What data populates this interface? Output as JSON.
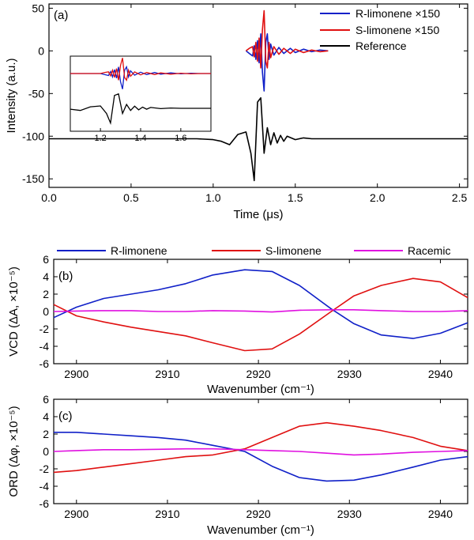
{
  "colors": {
    "R": "#1020c8",
    "S": "#e01010",
    "ref": "#000000",
    "rac": "#e010e0"
  },
  "chart_data": [
    {
      "type": "line",
      "panel_label": "(a)",
      "xlabel": "Time (μs)",
      "ylabel": "Intensity (a.u.)",
      "xlim": [
        0,
        2.55
      ],
      "ylim": [
        -160,
        55
      ],
      "xticks": [
        "0.0",
        "0.5",
        "1.0",
        "1.5",
        "2.0",
        "2.5"
      ],
      "yticks": [
        "50",
        "0",
        "-50",
        "-100",
        "-150"
      ],
      "xtick_values": [
        0,
        0.5,
        1.0,
        1.5,
        2.0,
        2.5
      ],
      "ytick_values": [
        50,
        0,
        -50,
        -100,
        -150
      ],
      "legend": [
        "R-limonene ×150",
        "S-limonene ×150",
        "Reference"
      ],
      "legend_position": "top-right",
      "series": [
        {
          "name": "R-limonene ×150",
          "color_key": "R",
          "x": [
            1.2,
            1.22,
            1.24,
            1.25,
            1.26,
            1.27,
            1.28,
            1.29,
            1.3,
            1.31,
            1.32,
            1.33,
            1.34,
            1.35,
            1.37,
            1.4,
            1.43,
            1.47,
            1.5,
            1.55,
            1.6,
            1.65,
            1.7
          ],
          "y": [
            0,
            -3,
            -6,
            6,
            -10,
            12,
            -14,
            20,
            -25,
            -47,
            10,
            20,
            -10,
            8,
            -5,
            4,
            -3,
            3,
            -2,
            2,
            -1,
            1,
            0
          ]
        },
        {
          "name": "S-limonene ×150",
          "color_key": "S",
          "x": [
            1.2,
            1.22,
            1.24,
            1.25,
            1.26,
            1.27,
            1.28,
            1.29,
            1.3,
            1.31,
            1.32,
            1.33,
            1.34,
            1.35,
            1.37,
            1.4,
            1.43,
            1.47,
            1.5,
            1.55,
            1.6,
            1.65,
            1.7
          ],
          "y": [
            0,
            3,
            5,
            -7,
            10,
            -12,
            15,
            -20,
            25,
            47,
            -12,
            -20,
            10,
            -8,
            5,
            -4,
            3,
            -3,
            2,
            -2,
            1,
            -1,
            0
          ]
        },
        {
          "name": "Reference",
          "color_key": "ref",
          "x": [
            0.0,
            0.9,
            1.0,
            1.05,
            1.1,
            1.15,
            1.2,
            1.23,
            1.25,
            1.27,
            1.29,
            1.31,
            1.33,
            1.35,
            1.37,
            1.39,
            1.41,
            1.43,
            1.45,
            1.5,
            1.55,
            1.6,
            1.7,
            1.8,
            2.55
          ],
          "y": [
            -103,
            -103,
            -104,
            -106,
            -110,
            -98,
            -95,
            -120,
            -152,
            -60,
            -55,
            -120,
            -90,
            -110,
            -96,
            -108,
            -99,
            -106,
            -100,
            -104,
            -102,
            -103,
            -103,
            -103,
            -103
          ]
        }
      ]
    },
    {
      "type": "line",
      "panel_label": "(b)",
      "xlabel": "Wavenumber (cm⁻¹)",
      "ylabel": "VCD (ΔA, ×10⁻⁵)",
      "xlim": [
        2897.5,
        2943
      ],
      "ylim": [
        -6,
        6
      ],
      "xticks": [
        "2900",
        "2910",
        "2920",
        "2930",
        "2940"
      ],
      "yticks": [
        "6",
        "4",
        "2",
        "0",
        "-2",
        "-4",
        "-6"
      ],
      "xtick_values": [
        2900,
        2910,
        2920,
        2930,
        2940
      ],
      "ytick_values": [
        6,
        4,
        2,
        0,
        -2,
        -4,
        -6
      ],
      "legend": [
        "R-limonene",
        "S-limonene",
        "Racemic"
      ],
      "legend_position": "top",
      "series": [
        {
          "name": "R-limonene",
          "color_key": "R",
          "x": [
            2897.5,
            2900,
            2903,
            2906,
            2909,
            2912,
            2915,
            2918.5,
            2921.5,
            2924.5,
            2928,
            2930.5,
            2933.5,
            2937,
            2940,
            2943
          ],
          "y": [
            -0.7,
            0.5,
            1.5,
            2.0,
            2.5,
            3.2,
            4.2,
            4.8,
            4.6,
            3.0,
            0.3,
            -1.4,
            -2.7,
            -3.1,
            -2.5,
            -1.3
          ]
        },
        {
          "name": "S-limonene",
          "color_key": "S",
          "x": [
            2897.5,
            2900,
            2903,
            2906,
            2909,
            2912,
            2915,
            2918.5,
            2921.5,
            2924.5,
            2928,
            2930.5,
            2933.5,
            2937,
            2940,
            2943
          ],
          "y": [
            0.8,
            -0.5,
            -1.2,
            -1.8,
            -2.3,
            -2.8,
            -3.6,
            -4.5,
            -4.3,
            -2.6,
            0.0,
            1.8,
            3.0,
            3.8,
            3.4,
            1.6
          ]
        },
        {
          "name": "Racemic",
          "color_key": "rac",
          "x": [
            2897.5,
            2900,
            2903,
            2906,
            2909,
            2912,
            2915,
            2918.5,
            2921.5,
            2924.5,
            2928,
            2930.5,
            2933.5,
            2937,
            2940,
            2943
          ],
          "y": [
            0.0,
            0.05,
            0.1,
            0.1,
            0.0,
            0.0,
            0.1,
            0.05,
            -0.05,
            0.15,
            0.2,
            0.2,
            0.1,
            0.0,
            0.0,
            0.1
          ]
        }
      ]
    },
    {
      "type": "line",
      "panel_label": "(c)",
      "xlabel": "Wavenumber (cm⁻¹)",
      "ylabel": "ORD (Δφ, ×10⁻⁵)",
      "xlim": [
        2897.5,
        2943
      ],
      "ylim": [
        -6,
        6
      ],
      "xticks": [
        "2900",
        "2910",
        "2920",
        "2930",
        "2940"
      ],
      "yticks": [
        "6",
        "4",
        "2",
        "0",
        "-2",
        "-4",
        "-6"
      ],
      "xtick_values": [
        2900,
        2910,
        2920,
        2930,
        2940
      ],
      "ytick_values": [
        6,
        4,
        2,
        0,
        -2,
        -4,
        -6
      ],
      "series": [
        {
          "name": "R-limonene",
          "color_key": "R",
          "x": [
            2897.5,
            2900,
            2903,
            2906,
            2909,
            2912,
            2915,
            2918.5,
            2921.5,
            2924.5,
            2927.5,
            2930.5,
            2933.5,
            2937,
            2940,
            2943
          ],
          "y": [
            2.2,
            2.2,
            2.0,
            1.8,
            1.6,
            1.3,
            0.7,
            0.0,
            -1.7,
            -3.0,
            -3.4,
            -3.3,
            -2.7,
            -1.8,
            -1.0,
            -0.6
          ]
        },
        {
          "name": "S-limonene",
          "color_key": "S",
          "x": [
            2897.5,
            2900,
            2903,
            2906,
            2909,
            2912,
            2915,
            2918.5,
            2921.5,
            2924.5,
            2927.5,
            2930.5,
            2933.5,
            2937,
            2940,
            2943
          ],
          "y": [
            -2.4,
            -2.2,
            -1.8,
            -1.4,
            -1.0,
            -0.6,
            -0.4,
            0.3,
            1.6,
            2.9,
            3.3,
            2.9,
            2.4,
            1.6,
            0.6,
            0.1
          ]
        },
        {
          "name": "Racemic",
          "color_key": "rac",
          "x": [
            2897.5,
            2900,
            2903,
            2906,
            2909,
            2912,
            2915,
            2918.5,
            2921.5,
            2924.5,
            2927.5,
            2930.5,
            2933.5,
            2937,
            2940,
            2943
          ],
          "y": [
            0.0,
            0.1,
            0.2,
            0.2,
            0.25,
            0.3,
            0.3,
            0.2,
            0.1,
            0.0,
            -0.2,
            -0.4,
            -0.3,
            -0.1,
            0.0,
            0.1
          ]
        }
      ]
    }
  ],
  "inset": {
    "xlim": [
      1.05,
      1.75
    ],
    "xticks": [
      "1.2",
      "1.4",
      "1.6"
    ],
    "xtick_values": [
      1.2,
      1.4,
      1.6
    ]
  }
}
